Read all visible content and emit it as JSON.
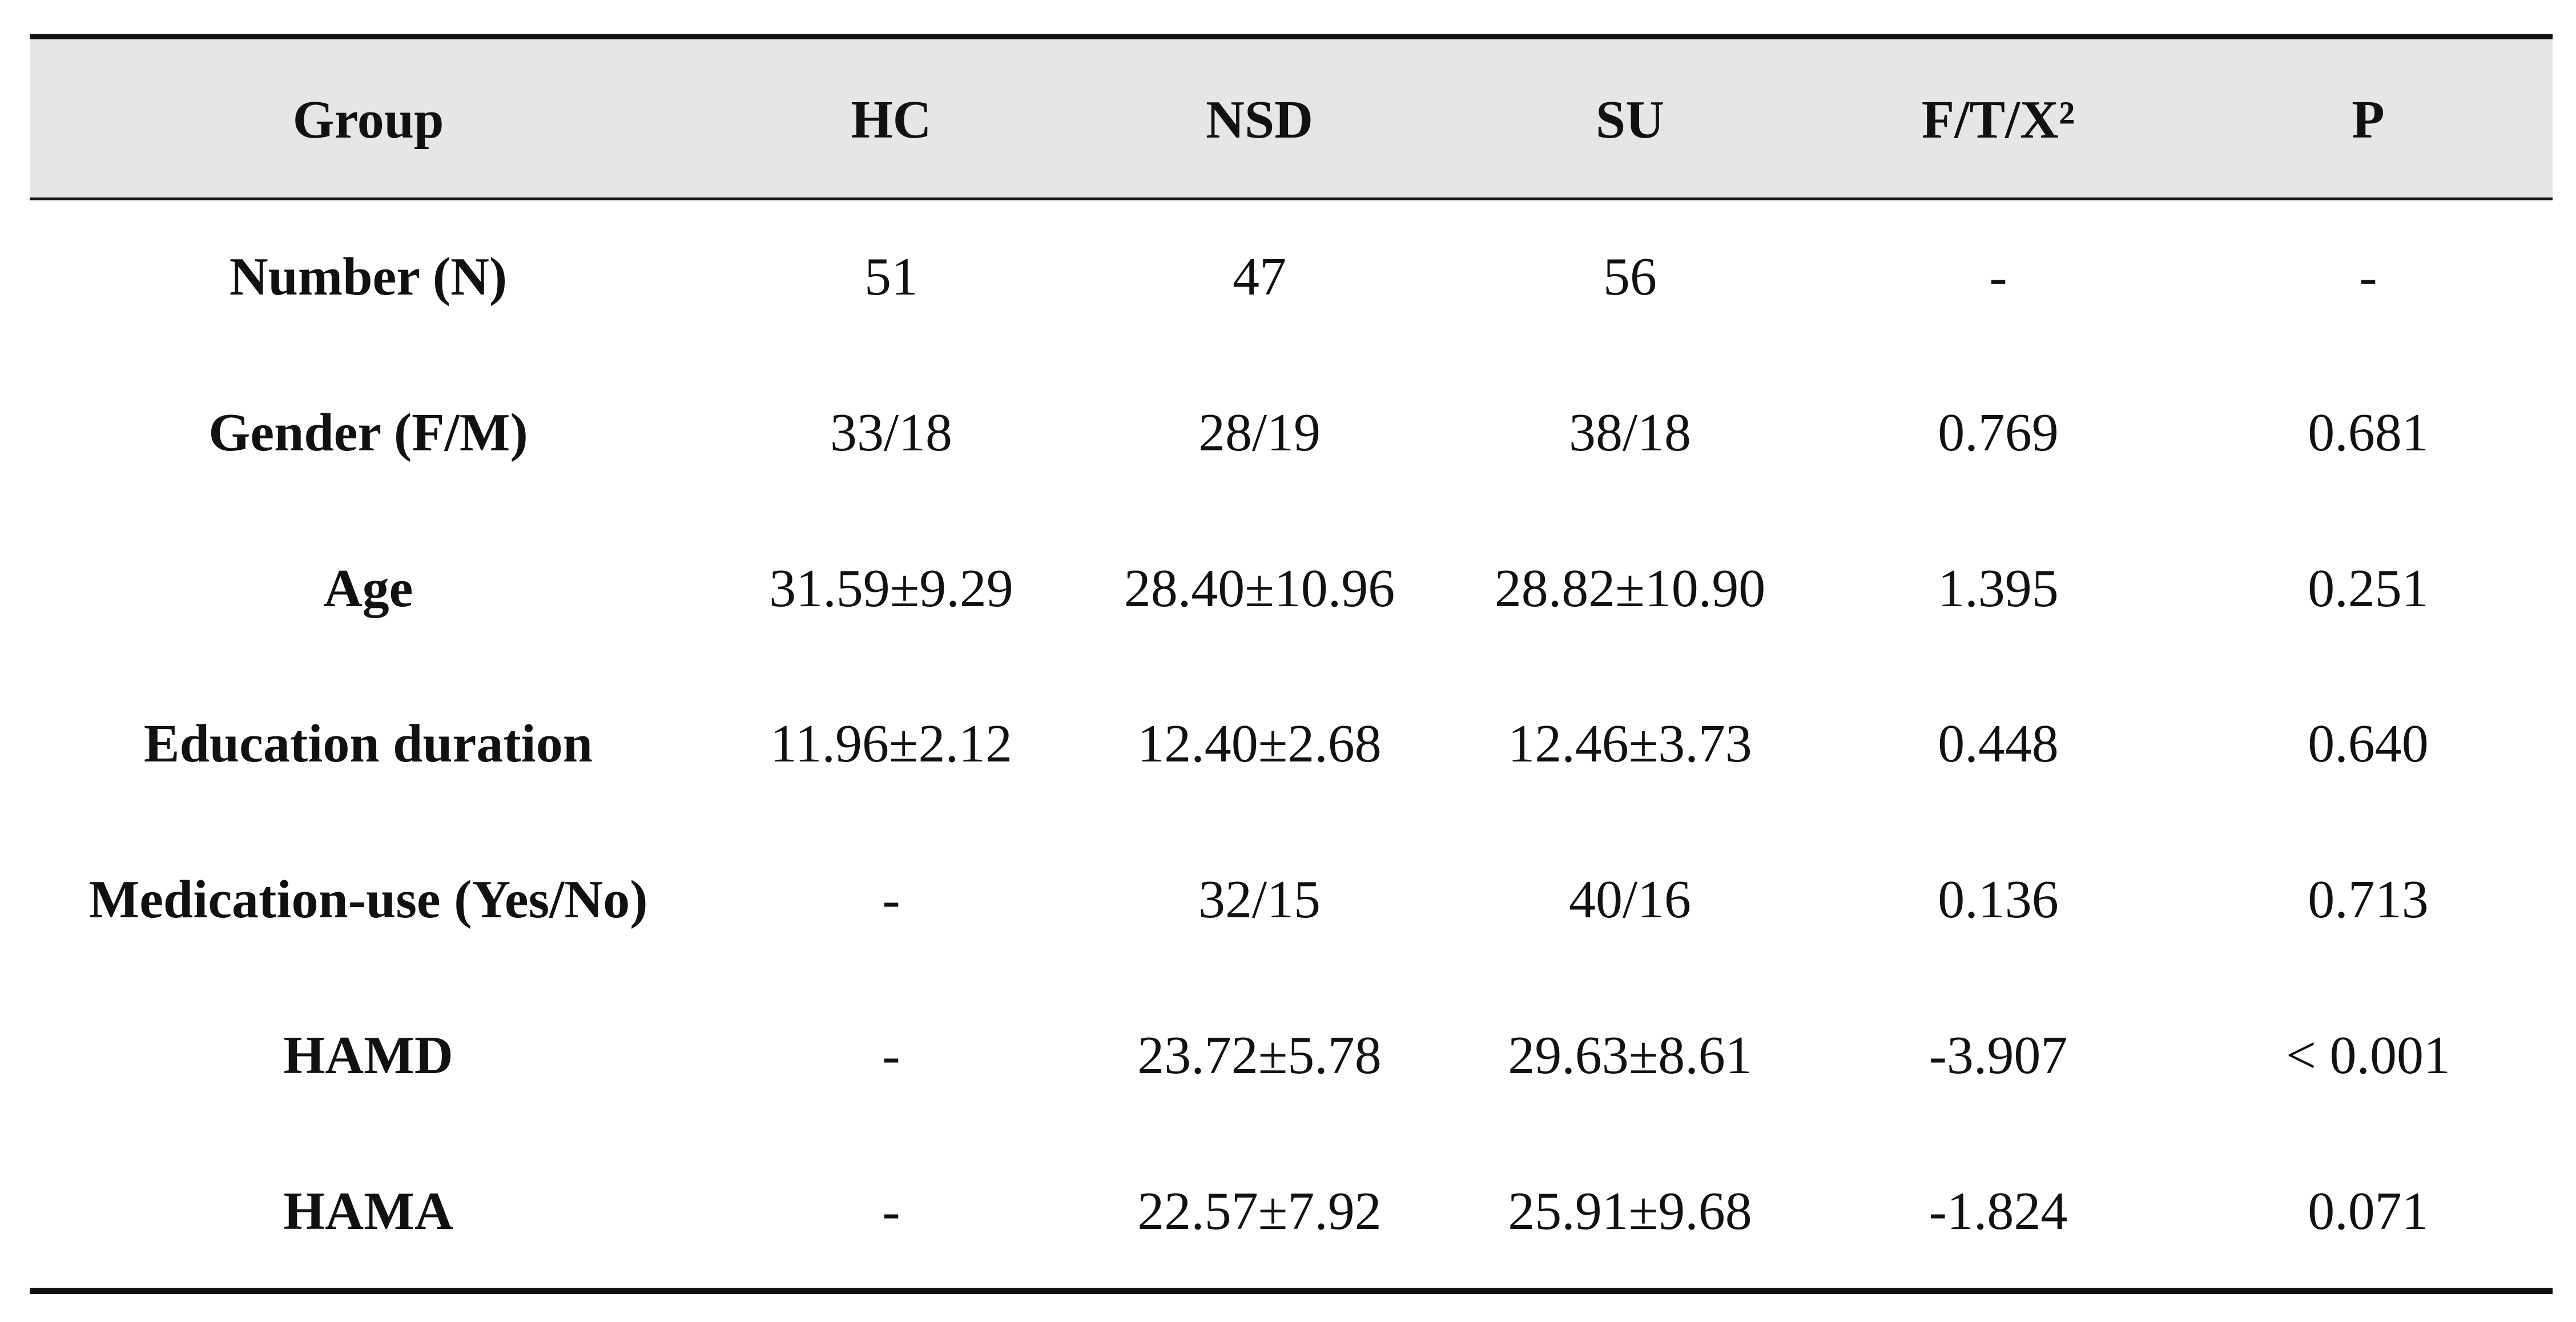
{
  "table": {
    "header": [
      "Group",
      "HC",
      "NSD",
      "SU",
      "F/T/X²",
      "P"
    ],
    "rows": [
      [
        "Number (N)",
        "51",
        "47",
        "56",
        "-",
        "-"
      ],
      [
        "Gender (F/M)",
        "33/18",
        "28/19",
        "38/18",
        "0.769",
        "0.681"
      ],
      [
        "Age",
        "31.59±9.29",
        "28.40±10.96",
        "28.82±10.90",
        "1.395",
        "0.251"
      ],
      [
        "Education duration",
        "11.96±2.12",
        "12.40±2.68",
        "12.46±3.73",
        "0.448",
        "0.640"
      ],
      [
        "Medication-use (Yes/No)",
        "-",
        "32/15",
        "40/16",
        "0.136",
        "0.713"
      ],
      [
        "HAMD",
        "-",
        "23.72±5.78",
        "29.63±8.61",
        "-3.907",
        "< 0.001"
      ],
      [
        "HAMA",
        "-",
        "22.57±7.92",
        "25.91±9.68",
        "-1.824",
        "0.071"
      ]
    ]
  }
}
